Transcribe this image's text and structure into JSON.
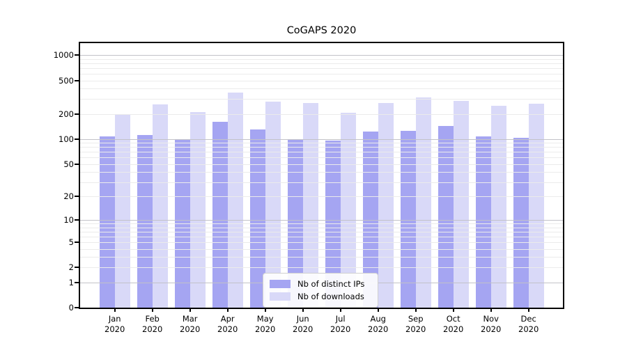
{
  "title": "CoGAPS 2020",
  "chart_data": {
    "type": "bar",
    "title": "CoGAPS 2020",
    "categories": [
      "Jan",
      "Feb",
      "Mar",
      "Apr",
      "May",
      "Jun",
      "Jul",
      "Aug",
      "Sep",
      "Oct",
      "Nov",
      "Dec"
    ],
    "year_label": "2020",
    "series": [
      {
        "name": "Nb of distinct IPs",
        "color": "#a5a5f2",
        "values": [
          108,
          111,
          98,
          161,
          131,
          99,
          95,
          122,
          126,
          143,
          107,
          104
        ]
      },
      {
        "name": "Nb of downloads",
        "color": "#d9d9f8",
        "values": [
          199,
          258,
          212,
          360,
          278,
          268,
          206,
          270,
          315,
          284,
          249,
          262
        ]
      }
    ],
    "xlabel": "",
    "ylabel": "",
    "yscale": "log10(value+1)",
    "y_ticks": [
      1000,
      500,
      200,
      100,
      50,
      20,
      10,
      5,
      2,
      1,
      0
    ],
    "ylim": [
      0,
      1435
    ],
    "grid": true,
    "gridline_color_decade": "#c2c2c8",
    "gridline_color_minor": "#ebebeb",
    "legend_position": "lower center"
  }
}
